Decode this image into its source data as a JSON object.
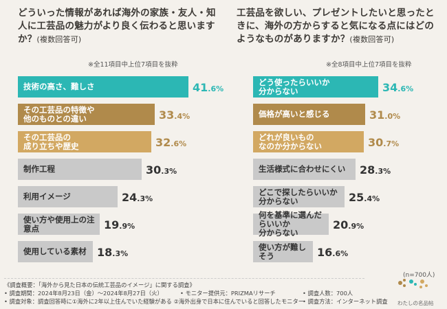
{
  "chart_data": [
    {
      "type": "bar",
      "orientation": "horizontal",
      "title": "どういった情報があれば海外の家族・友人・知人に工芸品の魅力がより良く伝わると思いますか？",
      "title_suffix": "(複数回答可)",
      "note": "※全11項目中上位7項目を抜粋",
      "categories": [
        "技術の高さ、難しさ",
        "その工芸品の特徴や\n他のものとの違い",
        "その工芸品の\n成り立ちや歴史",
        "制作工程",
        "利用イメージ",
        "使い方や使用上の注意点",
        "使用している素材"
      ],
      "values": [
        41.6,
        33.4,
        32.6,
        30.3,
        24.3,
        19.9,
        18.3
      ],
      "colors": [
        "#2cb7b4",
        "#b08a4b",
        "#d2a862",
        "#c9c9c9",
        "#c9c9c9",
        "#c9c9c9",
        "#c9c9c9"
      ],
      "unit": "%",
      "xlim": [
        0,
        45
      ]
    },
    {
      "type": "bar",
      "orientation": "horizontal",
      "title": "工芸品を欲しい、プレゼントしたいと思ったときに、海外の方からすると気になる点にはどのようなものがありますか？",
      "title_suffix": "(複数回答可)",
      "note": "※全8項目中上位7項目を抜粋",
      "categories": [
        "どう使ったらいいか\n分からない",
        "価格が高いと感じる",
        "どれが良いもの\nなのか分からない",
        "生活様式に合わせにくい",
        "どこで探したらいいか\n分からない",
        "何を基準に選んだらいいか\n分からない",
        "使い方が難しそう"
      ],
      "values": [
        34.6,
        31.0,
        30.7,
        28.3,
        25.4,
        20.9,
        16.6
      ],
      "colors": [
        "#2cb7b4",
        "#b08a4b",
        "#d2a862",
        "#c9c9c9",
        "#c9c9c9",
        "#c9c9c9",
        "#c9c9c9"
      ],
      "unit": "%",
      "xlim": [
        0,
        40
      ]
    }
  ],
  "sample_note": "(n=700人)",
  "footer": {
    "line1": "《調査概要：「海外から見た日本の伝統工芸品のイメージ」に関する調査》",
    "line2a": "• 調査期間：2024年8月23日（金）〜2024年8月27日（火）",
    "line2b": "• モニター提供元：PRIZMAリサーチ",
    "line2c": "• 調査人数：700人",
    "line3a": "• 調査対象：調査回答時に①海外に2年以上住んでいた経験がある ②海外出身で日本に住んでいると回答したモニター",
    "line3b": "• 調査方法：インターネット調査"
  },
  "logo": {
    "text": "わたしの名品帖"
  }
}
